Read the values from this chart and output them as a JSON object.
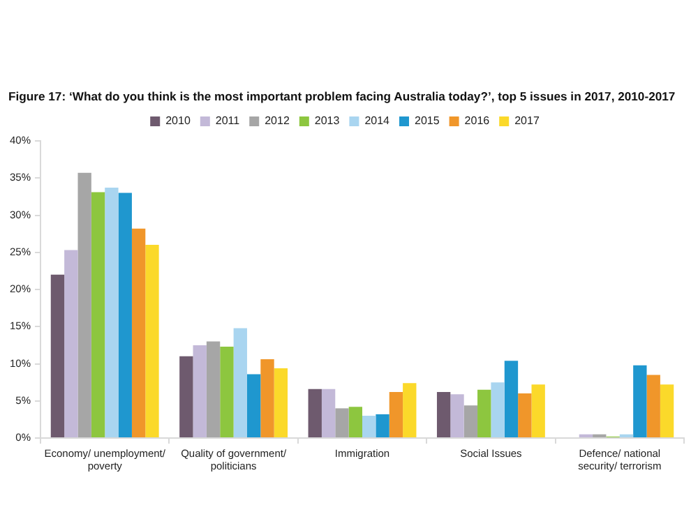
{
  "chart_data": {
    "type": "bar",
    "title": "Figure 17: ‘What do you think is the most important problem facing Australia today?’, top 5 issues in 2017, 2010-2017",
    "categories": [
      [
        "Economy/ unemployment/",
        "poverty"
      ],
      [
        "Quality of government/",
        "politicians"
      ],
      [
        "Immigration"
      ],
      [
        "Social Issues"
      ],
      [
        "Defence/ national",
        "security/ terrorism"
      ]
    ],
    "series": [
      {
        "name": "2010",
        "color": "#6e5a6e",
        "values": [
          22.0,
          11.0,
          6.6,
          6.2,
          0
        ]
      },
      {
        "name": "2011",
        "color": "#c3b9d8",
        "values": [
          25.3,
          12.5,
          6.6,
          5.9,
          0.5
        ]
      },
      {
        "name": "2012",
        "color": "#a6a6a6",
        "values": [
          35.7,
          13.0,
          4.0,
          4.4,
          0.5
        ]
      },
      {
        "name": "2013",
        "color": "#8dc63f",
        "values": [
          33.1,
          12.3,
          4.2,
          6.5,
          0.2
        ]
      },
      {
        "name": "2014",
        "color": "#a9d5f0",
        "values": [
          33.7,
          14.8,
          3.0,
          7.5,
          0.5
        ]
      },
      {
        "name": "2015",
        "color": "#1f97cf",
        "values": [
          33.0,
          8.6,
          3.2,
          10.4,
          9.8
        ]
      },
      {
        "name": "2016",
        "color": "#f0962a",
        "values": [
          28.2,
          10.6,
          6.2,
          6.0,
          8.5
        ]
      },
      {
        "name": "2017",
        "color": "#fbd92a",
        "values": [
          26.0,
          9.4,
          7.4,
          7.2,
          7.2
        ]
      }
    ],
    "ylim": [
      0,
      40
    ],
    "yticks": [
      {
        "value": 0,
        "label": "0%"
      },
      {
        "value": 5,
        "label": "5%"
      },
      {
        "value": 10,
        "label": "10%"
      },
      {
        "value": 15,
        "label": "15%"
      },
      {
        "value": 20,
        "label": "20%"
      },
      {
        "value": 25,
        "label": "25%"
      },
      {
        "value": 30,
        "label": "30%"
      },
      {
        "value": 35,
        "label": "35%"
      },
      {
        "value": 40,
        "label": "40%"
      }
    ],
    "grid": false,
    "legend": "top"
  }
}
